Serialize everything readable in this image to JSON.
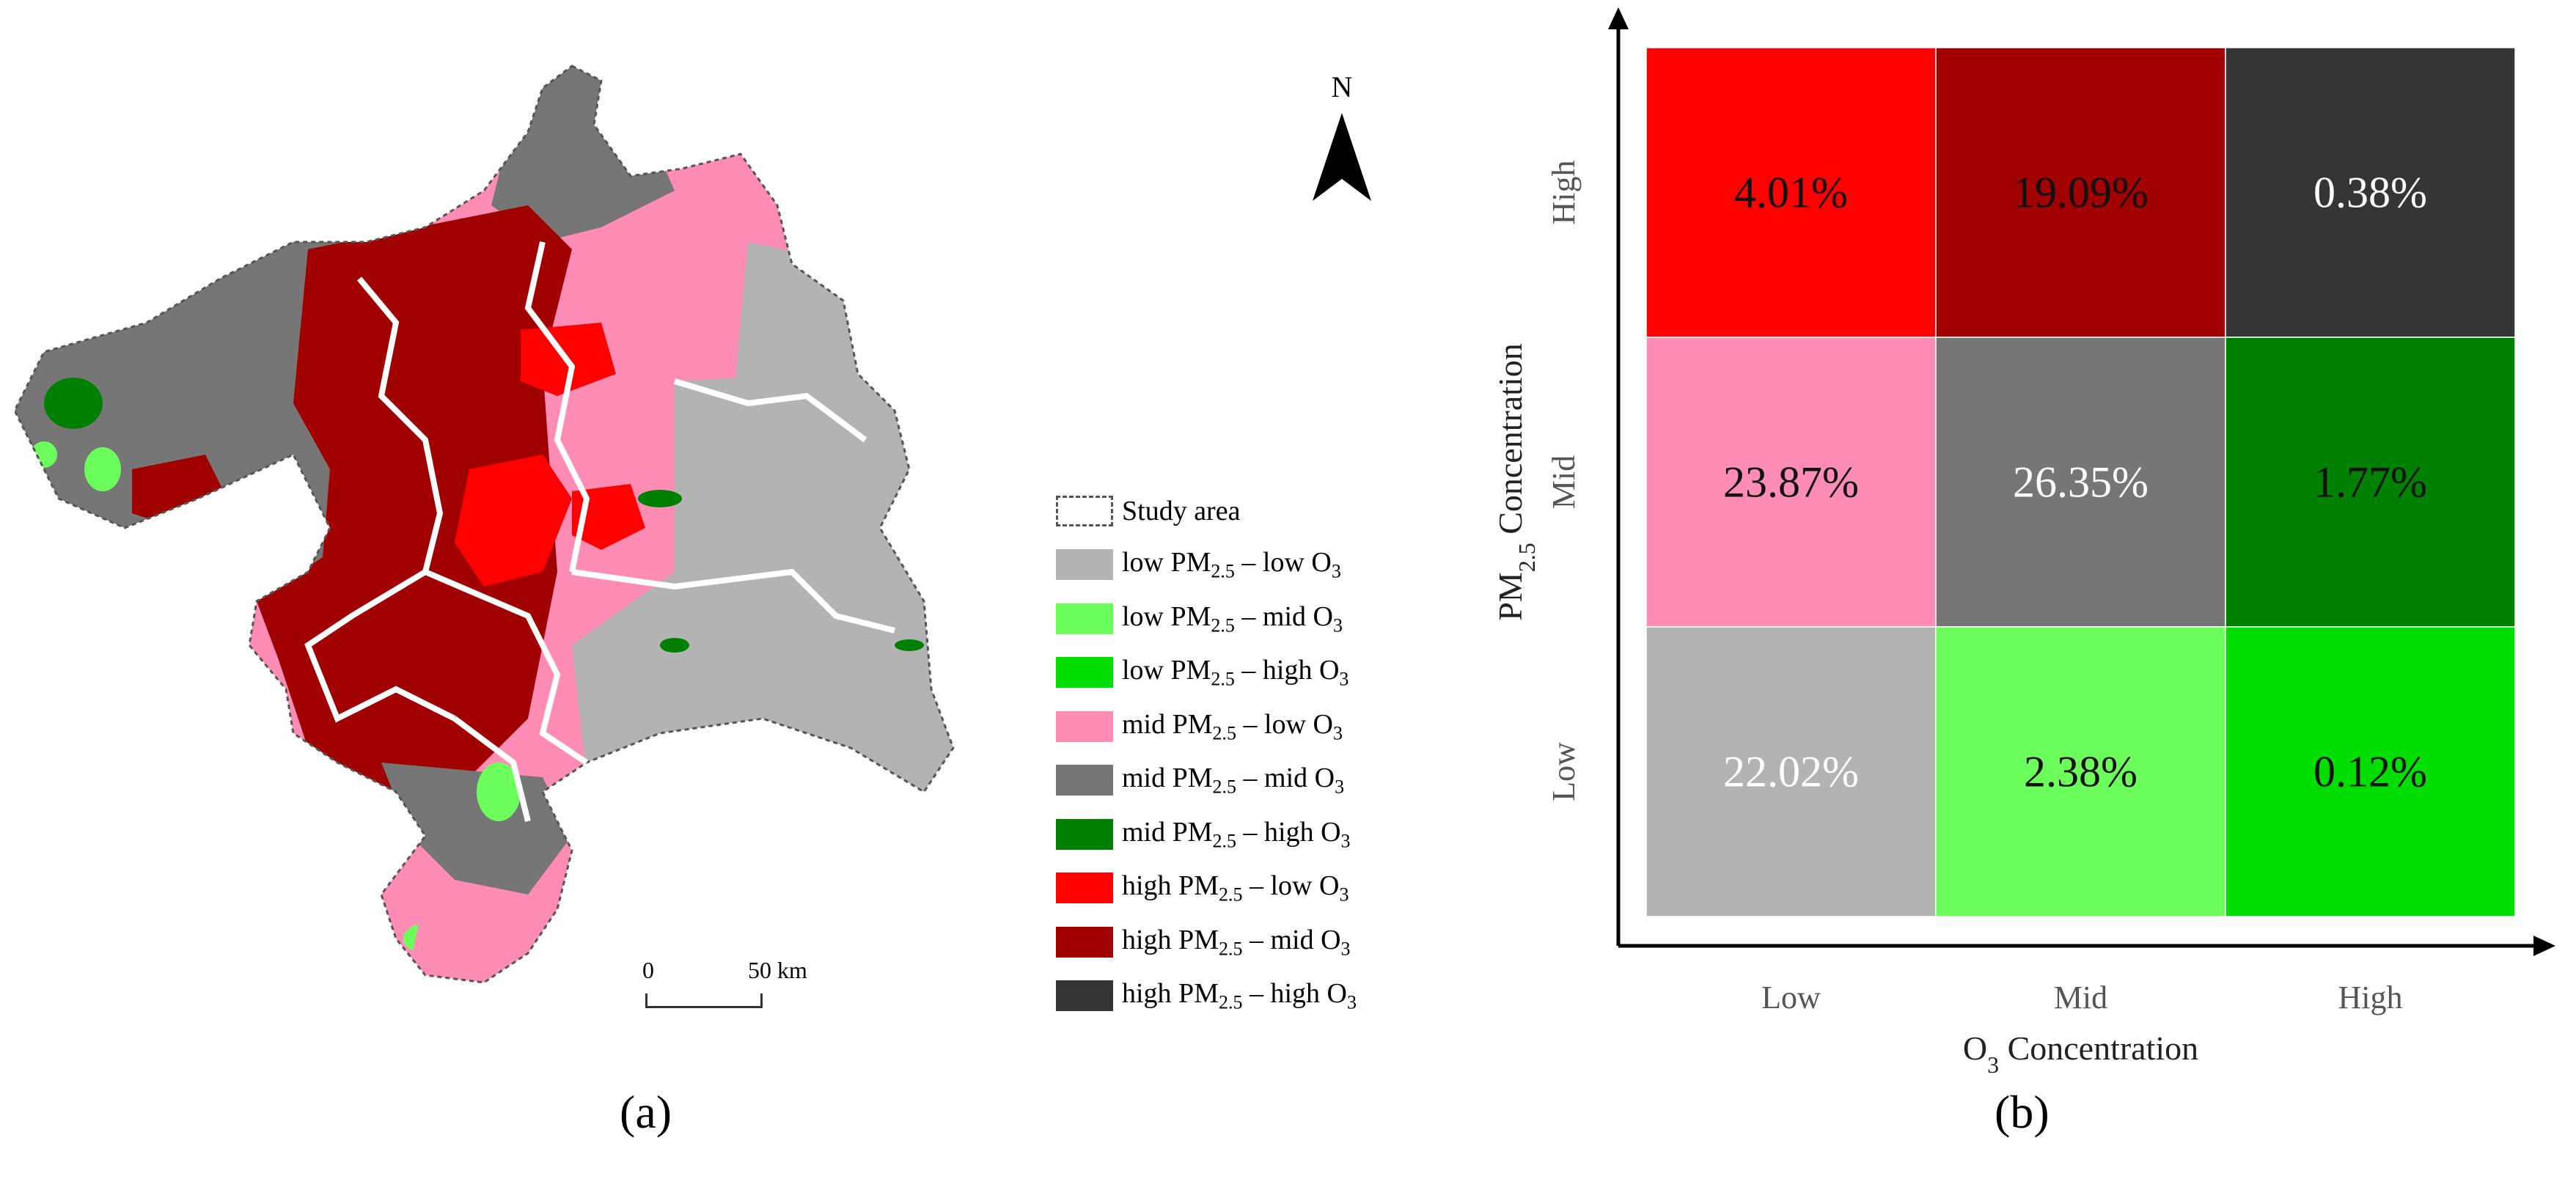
{
  "map": {
    "north_label": "N",
    "scale": {
      "start": "0",
      "end": "50 km"
    },
    "legend": [
      {
        "label": "Study area",
        "color": "#ffffff",
        "style": "dashed"
      },
      {
        "label_parts": [
          "low PM",
          "2.5",
          " – low O",
          "3"
        ],
        "color": "#b3b3b3"
      },
      {
        "label_parts": [
          "low PM",
          "2.5",
          " – mid O",
          "3"
        ],
        "color": "#6cff5c"
      },
      {
        "label_parts": [
          "low PM",
          "2.5",
          " – high O",
          "3"
        ],
        "color": "#00dd00"
      },
      {
        "label_parts": [
          "mid PM",
          "2.5",
          " – low O",
          "3"
        ],
        "color": "#ff8cb4"
      },
      {
        "label_parts": [
          "mid PM",
          "2.5",
          " – mid O",
          "3"
        ],
        "color": "#767676"
      },
      {
        "label_parts": [
          "mid PM",
          "2.5",
          " – high O",
          "3"
        ],
        "color": "#008000"
      },
      {
        "label_parts": [
          "high PM",
          "2.5",
          " – low O",
          "3"
        ],
        "color": "#ff0000"
      },
      {
        "label_parts": [
          "high PM",
          "2.5",
          " – mid O",
          "3"
        ],
        "color": "#a00000"
      },
      {
        "label_parts": [
          "high PM",
          "2.5",
          " – high O",
          "3"
        ],
        "color": "#353535"
      }
    ],
    "caption": "(a)"
  },
  "chart_data": {
    "type": "heatmap",
    "x_categories": [
      "Low",
      "Mid",
      "High"
    ],
    "y_categories": [
      "Low",
      "Mid",
      "High"
    ],
    "xlabel_parts": [
      "O",
      "3",
      " Concentration"
    ],
    "ylabel_parts": [
      "PM",
      "2.5",
      " Concentration"
    ],
    "cells": [
      {
        "row": "High",
        "col": "Low",
        "value": "4.01%",
        "color": "#ff0000",
        "text_color": "#111111"
      },
      {
        "row": "High",
        "col": "Mid",
        "value": "19.09%",
        "color": "#a00000",
        "text_color": "#111111"
      },
      {
        "row": "High",
        "col": "High",
        "value": "0.38%",
        "color": "#353535",
        "text_color": "#ffffff"
      },
      {
        "row": "Mid",
        "col": "Low",
        "value": "23.87%",
        "color": "#ff8cb4",
        "text_color": "#111111"
      },
      {
        "row": "Mid",
        "col": "Mid",
        "value": "26.35%",
        "color": "#767676",
        "text_color": "#ffffff"
      },
      {
        "row": "Mid",
        "col": "High",
        "value": "1.77%",
        "color": "#008000",
        "text_color": "#111111"
      },
      {
        "row": "Low",
        "col": "Low",
        "value": "22.02%",
        "color": "#b3b3b3",
        "text_color": "#ffffff"
      },
      {
        "row": "Low",
        "col": "Mid",
        "value": "2.38%",
        "color": "#6cff5c",
        "text_color": "#111111"
      },
      {
        "row": "Low",
        "col": "High",
        "value": "0.12%",
        "color": "#00dd00",
        "text_color": "#111111"
      }
    ],
    "caption": "(b)"
  }
}
